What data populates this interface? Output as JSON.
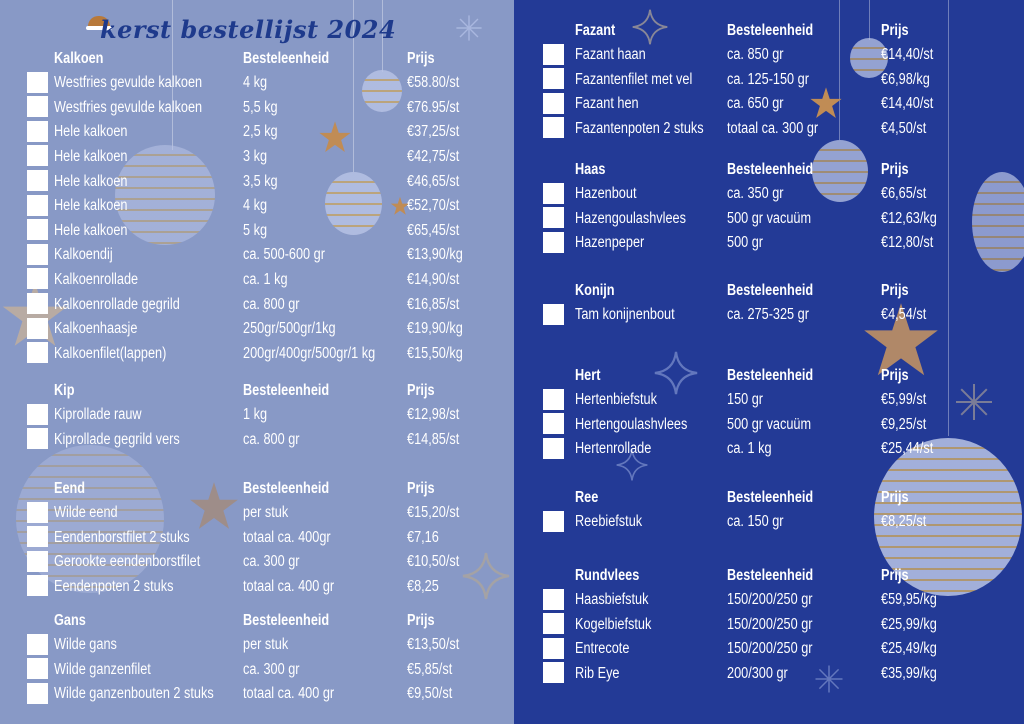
{
  "title": "kerst bestellijst 2024",
  "colors": {
    "left_bg": "#8899c6",
    "right_bg": "#233a96",
    "title": "#1e3a8c",
    "text": "#ffffff",
    "accent_gold": "#c08c55"
  },
  "column_headers": {
    "unit": "Besteleenheid",
    "price": "Prijs"
  },
  "left": [
    {
      "category": "Kalkoen",
      "items": [
        {
          "name": "Westfries gevulde kalkoen",
          "unit": "4 kg",
          "price": "€58.80/st"
        },
        {
          "name": "Westfries gevulde kalkoen",
          "unit": "5,5 kg",
          "price": "€76.95/st"
        },
        {
          "name": "Hele kalkoen",
          "unit": "2,5 kg",
          "price": "€37,25/st"
        },
        {
          "name": "Hele kalkoen",
          "unit": "3 kg",
          "price": "€42,75/st"
        },
        {
          "name": "Hele kalkoen",
          "unit": "3,5 kg",
          "price": "€46,65/st"
        },
        {
          "name": "Hele kalkoen",
          "unit": "4 kg",
          "price": "€52,70/st"
        },
        {
          "name": "Hele kalkoen",
          "unit": "5 kg",
          "price": "€65,45/st"
        },
        {
          "name": "Kalkoendij",
          "unit": "ca. 500-600 gr",
          "price": "€13,90/kg"
        },
        {
          "name": "Kalkoenrollade",
          "unit": "ca. 1 kg",
          "price": "€14,90/st"
        },
        {
          "name": "Kalkoenrollade gegrild",
          "unit": "ca. 800 gr",
          "price": "€16,85/st"
        },
        {
          "name": "Kalkoenhaasje",
          "unit": "250gr/500gr/1kg",
          "price": "€19,90/kg"
        },
        {
          "name": "Kalkoenfilet(lappen)",
          "unit": "200gr/400gr/500gr/1 kg",
          "price": "€15,50/kg"
        }
      ]
    },
    {
      "category": "Kip",
      "items": [
        {
          "name": "Kiprollade rauw",
          "unit": "1 kg",
          "price": "€12,98/st"
        },
        {
          "name": "Kiprollade gegrild vers",
          "unit": "ca. 800 gr",
          "price": "€14,85/st"
        }
      ]
    },
    {
      "category": "Eend",
      "items": [
        {
          "name": "Wilde eend",
          "unit": "per stuk",
          "price": "€15,20/st"
        },
        {
          "name": "Eendenborstfilet 2 stuks",
          "unit": "totaal ca. 400gr",
          "price": "€7,16"
        },
        {
          "name": "Gerookte eendenborstfilet",
          "unit": "ca. 300 gr",
          "price": "€10,50/st"
        },
        {
          "name": "Eendenpoten  2 stuks",
          "unit": "totaal ca. 400 gr",
          "price": "€8,25"
        }
      ]
    },
    {
      "category": "Gans",
      "items": [
        {
          "name": "Wilde gans",
          "unit": "per stuk",
          "price": "€13,50/st"
        },
        {
          "name": "Wilde ganzenfilet",
          "unit": "ca. 300 gr",
          "price": "€5,85/st"
        },
        {
          "name": "Wilde ganzenbouten 2 stuks",
          "unit": "totaal ca. 400 gr",
          "price": "€9,50/st"
        }
      ]
    }
  ],
  "right": [
    {
      "category": "Fazant",
      "items": [
        {
          "name": "Fazant haan",
          "unit": "ca. 850 gr",
          "price": "€14,40/st"
        },
        {
          "name": "Fazantenfilet met vel",
          "unit": "ca. 125-150 gr",
          "price": "€6,98/kg"
        },
        {
          "name": "Fazant hen",
          "unit": "ca. 650 gr",
          "price": "€14,40/st"
        },
        {
          "name": "Fazantenpoten 2 stuks",
          "unit": "totaal ca. 300 gr",
          "price": "€4,50/st"
        }
      ]
    },
    {
      "category": "Haas",
      "items": [
        {
          "name": "Hazenbout",
          "unit": "ca. 350 gr",
          "price": "€6,65/st"
        },
        {
          "name": "Hazengoulashvlees",
          "unit": "500 gr vacuüm",
          "price": "€12,63/kg"
        },
        {
          "name": "Hazenpeper",
          "unit": "500 gr",
          "price": "€12,80/st"
        }
      ]
    },
    {
      "category": "Konijn",
      "items": [
        {
          "name": "Tam konijnenbout",
          "unit": "ca. 275-325 gr",
          "price": "€4,54/st"
        }
      ]
    },
    {
      "category": "Hert",
      "items": [
        {
          "name": "Hertenbiefstuk",
          "unit": "150 gr",
          "price": "€5,99/st"
        },
        {
          "name": "Hertengoulashvlees",
          "unit": "500 gr vacuüm",
          "price": "€9,25/st"
        },
        {
          "name": "Hertenrollade",
          "unit": "ca. 1 kg",
          "price": "€25,44/st"
        }
      ]
    },
    {
      "category": "Ree",
      "items": [
        {
          "name": "Reebiefstuk",
          "unit": "ca. 150 gr",
          "price": "€8,25/st"
        }
      ]
    },
    {
      "category": "Rundvlees",
      "items": [
        {
          "name": "Haasbiefstuk",
          "unit": "150/200/250 gr",
          "price": "€59,95/kg"
        },
        {
          "name": "Kogelbiefstuk",
          "unit": "150/200/250 gr",
          "price": "€25,99/kg"
        },
        {
          "name": "Entrecote",
          "unit": "150/200/250 gr",
          "price": "€25,49/kg"
        },
        {
          "name": "Rib Eye",
          "unit": "200/300 gr",
          "price": "€35,99/kg"
        }
      ]
    }
  ]
}
